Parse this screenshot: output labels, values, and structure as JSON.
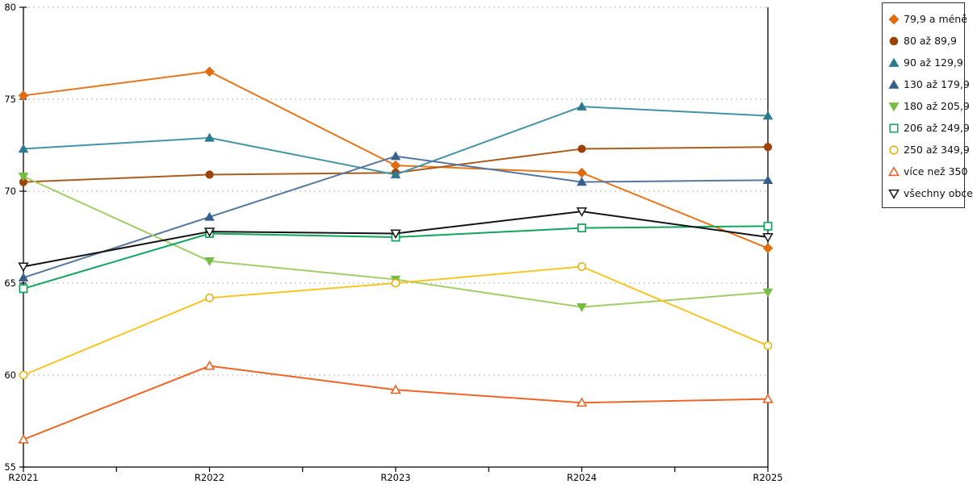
{
  "chart_data": {
    "type": "line",
    "title": "",
    "xlabel": "",
    "ylabel": "",
    "categories": [
      "R2021",
      "R2022",
      "R2023",
      "R2024",
      "R2025"
    ],
    "ylim": [
      55,
      80
    ],
    "yticks": [
      55,
      60,
      65,
      70,
      75,
      80
    ],
    "grid": "horizontal dashed gridlines at 60,65,70,75,80",
    "legend_position": "right-outside",
    "axis_color": "#000000",
    "gridline_color": "#b3b3b3",
    "series": [
      {
        "name": "79,9 a méně",
        "marker": "diamond",
        "style": "filled",
        "color": "#e8751a",
        "marker_color": "#e06c10",
        "values": [
          75.2,
          76.5,
          71.4,
          71.0,
          66.9
        ]
      },
      {
        "name": "80 až 89,9",
        "marker": "circle",
        "style": "filled",
        "color": "#a85c1e",
        "marker_color": "#9c430a",
        "values": [
          70.5,
          70.9,
          71.0,
          72.3,
          72.4
        ]
      },
      {
        "name": "90 až 129,9",
        "marker": "triangle-up",
        "style": "filled",
        "color": "#4493a9",
        "marker_color": "#2c7a90",
        "values": [
          72.3,
          72.9,
          70.9,
          74.6,
          74.1
        ]
      },
      {
        "name": "130 až 179,9",
        "marker": "triangle-up",
        "style": "filled",
        "color": "#54779f",
        "marker_color": "#365f8c",
        "values": [
          65.3,
          68.6,
          71.9,
          70.5,
          70.6
        ]
      },
      {
        "name": "180 až 205,9",
        "marker": "triangle-down",
        "style": "filled",
        "color": "#a2cd66",
        "marker_color": "#76bc40",
        "values": [
          70.8,
          66.2,
          65.2,
          63.7,
          64.5
        ]
      },
      {
        "name": "206 až 249,9",
        "marker": "square",
        "style": "open",
        "color": "#10a45c",
        "marker_color": "#10a45c",
        "values": [
          64.7,
          67.7,
          67.5,
          68.0,
          68.1
        ]
      },
      {
        "name": "250 až 349,9",
        "marker": "circle",
        "style": "open",
        "color": "#f8c525",
        "marker_color": "#e5b007",
        "values": [
          60.0,
          64.2,
          65.0,
          65.9,
          61.6
        ]
      },
      {
        "name": "více než 350",
        "marker": "triangle-up",
        "style": "open",
        "color": "#ee6527",
        "marker_color": "#e85f1f",
        "values": [
          56.5,
          60.5,
          59.2,
          58.5,
          58.7
        ]
      },
      {
        "name": "všechny obce",
        "marker": "triangle-down",
        "style": "open",
        "color": "#141414",
        "marker_color": "#141414",
        "values": [
          65.9,
          67.8,
          67.7,
          68.9,
          67.5
        ]
      }
    ]
  }
}
